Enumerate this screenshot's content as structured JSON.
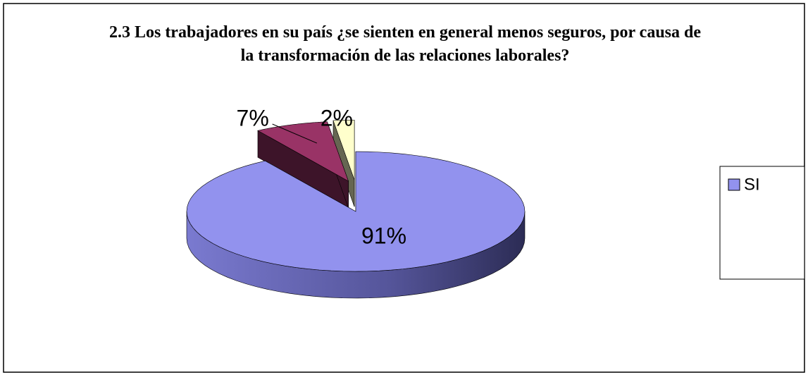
{
  "chart_data": {
    "type": "pie3d",
    "title": "2.3 Los trabajadores en su país ¿se sienten en general menos seguros, por causa de la transformación de las relaciones laborales?",
    "categories": [
      "SI",
      null,
      null
    ],
    "values": [
      91,
      7,
      2
    ],
    "value_labels": [
      "91%",
      "7%",
      "2%"
    ],
    "colors": [
      "#9292ee",
      "#993366",
      "#ffffcc"
    ],
    "legend": "right"
  }
}
